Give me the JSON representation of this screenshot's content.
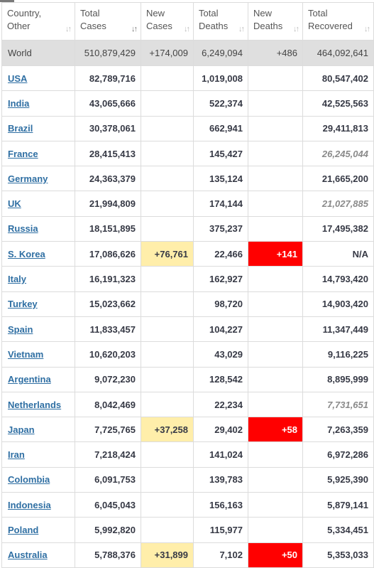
{
  "columns": [
    {
      "line1": "Country,",
      "line2": "Other",
      "sort": "↓↑",
      "active": false
    },
    {
      "line1": "Total",
      "line2": "Cases",
      "sort": "↓↑",
      "active": true
    },
    {
      "line1": "New",
      "line2": "Cases",
      "sort": "↓↑",
      "active": false
    },
    {
      "line1": "Total",
      "line2": "Deaths",
      "sort": "↓↑",
      "active": false
    },
    {
      "line1": "New",
      "line2": "Deaths",
      "sort": "↓↑",
      "active": false
    },
    {
      "line1": "Total",
      "line2": "Recovered",
      "sort": "↓↑",
      "active": false
    }
  ],
  "world": {
    "name": "World",
    "total_cases": "510,879,429",
    "new_cases": "+174,009",
    "total_deaths": "6,249,094",
    "new_deaths": "+486",
    "total_recovered": "464,092,641"
  },
  "rows": [
    {
      "name": "USA",
      "total_cases": "82,789,716",
      "new_cases": "",
      "total_deaths": "1,019,008",
      "new_deaths": "",
      "total_recovered": "80,547,402",
      "recovered_italic": false
    },
    {
      "name": "India",
      "total_cases": "43,065,666",
      "new_cases": "",
      "total_deaths": "522,374",
      "new_deaths": "",
      "total_recovered": "42,525,563",
      "recovered_italic": false
    },
    {
      "name": "Brazil",
      "total_cases": "30,378,061",
      "new_cases": "",
      "total_deaths": "662,941",
      "new_deaths": "",
      "total_recovered": "29,411,813",
      "recovered_italic": false
    },
    {
      "name": "France",
      "total_cases": "28,415,413",
      "new_cases": "",
      "total_deaths": "145,427",
      "new_deaths": "",
      "total_recovered": "26,245,044",
      "recovered_italic": true
    },
    {
      "name": "Germany",
      "total_cases": "24,363,379",
      "new_cases": "",
      "total_deaths": "135,124",
      "new_deaths": "",
      "total_recovered": "21,665,200",
      "recovered_italic": false
    },
    {
      "name": "UK",
      "total_cases": "21,994,809",
      "new_cases": "",
      "total_deaths": "174,144",
      "new_deaths": "",
      "total_recovered": "21,027,885",
      "recovered_italic": true
    },
    {
      "name": "Russia",
      "total_cases": "18,151,895",
      "new_cases": "",
      "total_deaths": "375,237",
      "new_deaths": "",
      "total_recovered": "17,495,382",
      "recovered_italic": false
    },
    {
      "name": "S. Korea",
      "total_cases": "17,086,626",
      "new_cases": "+76,761",
      "total_deaths": "22,466",
      "new_deaths": "+141",
      "total_recovered": "N/A",
      "recovered_italic": false
    },
    {
      "name": "Italy",
      "total_cases": "16,191,323",
      "new_cases": "",
      "total_deaths": "162,927",
      "new_deaths": "",
      "total_recovered": "14,793,420",
      "recovered_italic": false
    },
    {
      "name": "Turkey",
      "total_cases": "15,023,662",
      "new_cases": "",
      "total_deaths": "98,720",
      "new_deaths": "",
      "total_recovered": "14,903,420",
      "recovered_italic": false
    },
    {
      "name": "Spain",
      "total_cases": "11,833,457",
      "new_cases": "",
      "total_deaths": "104,227",
      "new_deaths": "",
      "total_recovered": "11,347,449",
      "recovered_italic": false
    },
    {
      "name": "Vietnam",
      "total_cases": "10,620,203",
      "new_cases": "",
      "total_deaths": "43,029",
      "new_deaths": "",
      "total_recovered": "9,116,225",
      "recovered_italic": false
    },
    {
      "name": "Argentina",
      "total_cases": "9,072,230",
      "new_cases": "",
      "total_deaths": "128,542",
      "new_deaths": "",
      "total_recovered": "8,895,999",
      "recovered_italic": false
    },
    {
      "name": "Netherlands",
      "total_cases": "8,042,469",
      "new_cases": "",
      "total_deaths": "22,234",
      "new_deaths": "",
      "total_recovered": "7,731,651",
      "recovered_italic": true
    },
    {
      "name": "Japan",
      "total_cases": "7,725,765",
      "new_cases": "+37,258",
      "total_deaths": "29,402",
      "new_deaths": "+58",
      "total_recovered": "7,263,359",
      "recovered_italic": false
    },
    {
      "name": "Iran",
      "total_cases": "7,218,424",
      "new_cases": "",
      "total_deaths": "141,024",
      "new_deaths": "",
      "total_recovered": "6,972,286",
      "recovered_italic": false
    },
    {
      "name": "Colombia",
      "total_cases": "6,091,753",
      "new_cases": "",
      "total_deaths": "139,783",
      "new_deaths": "",
      "total_recovered": "5,925,390",
      "recovered_italic": false
    },
    {
      "name": "Indonesia",
      "total_cases": "6,045,043",
      "new_cases": "",
      "total_deaths": "156,163",
      "new_deaths": "",
      "total_recovered": "5,879,141",
      "recovered_italic": false
    },
    {
      "name": "Poland",
      "total_cases": "5,992,820",
      "new_cases": "",
      "total_deaths": "115,977",
      "new_deaths": "",
      "total_recovered": "5,334,451",
      "recovered_italic": false
    },
    {
      "name": "Australia",
      "total_cases": "5,788,376",
      "new_cases": "+31,899",
      "total_deaths": "7,102",
      "new_deaths": "+50",
      "total_recovered": "5,353,033",
      "recovered_italic": false
    }
  ],
  "colors": {
    "link": "#2f6fa3",
    "world_row_bg": "#dfdfdf",
    "new_cases_highlight": "#ffeeaa",
    "new_deaths_highlight": "#ff0000",
    "border": "#dcdcdc"
  },
  "icons": {
    "sort": "sort-arrows-icon"
  }
}
